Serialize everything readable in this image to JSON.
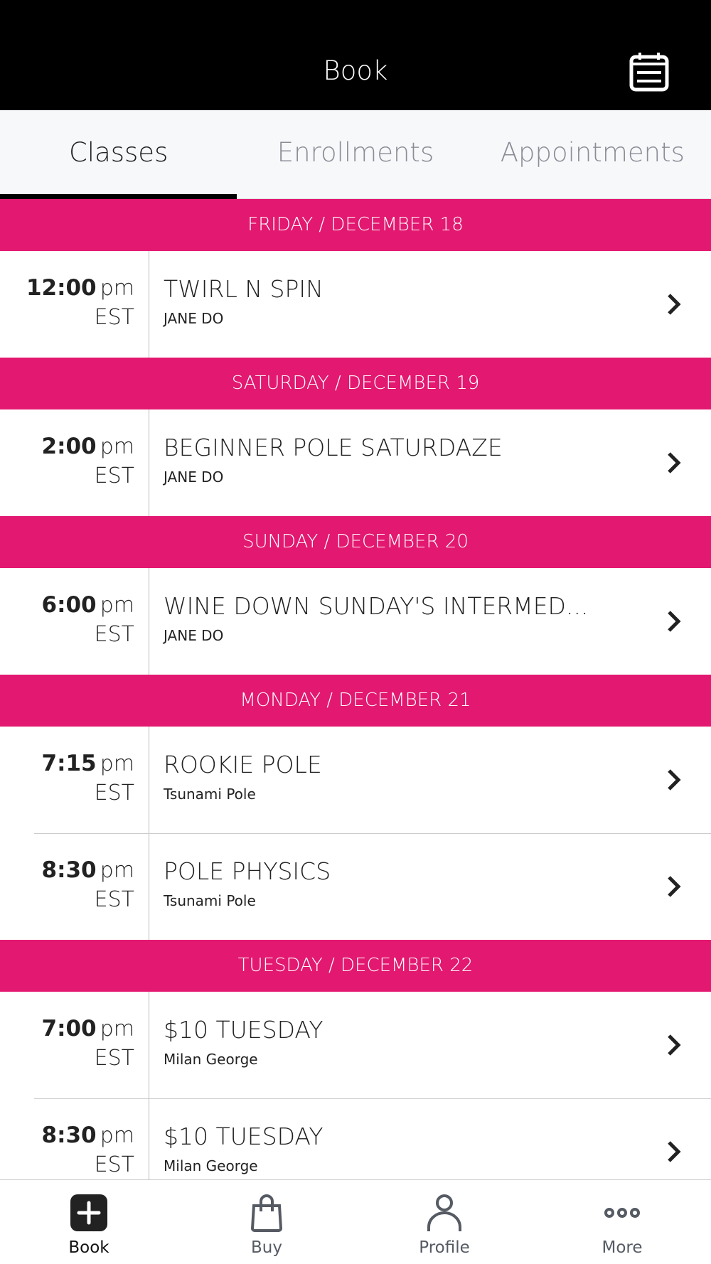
{
  "header": {
    "title": "Book",
    "calendar_icon": "calendar-list-icon"
  },
  "tabs": [
    {
      "label": "Classes",
      "active": true
    },
    {
      "label": "Enrollments"
    },
    {
      "label": "Appointments"
    }
  ],
  "colors": {
    "accent": "#e31870",
    "header_bg": "#000000"
  },
  "groups": [
    {
      "date": "FRIDAY / DECEMBER 18",
      "classes": [
        {
          "time": "12:00",
          "ampm": "pm",
          "tz": "EST",
          "name": "TWIRL N SPIN",
          "instructor": "JANE DO"
        }
      ]
    },
    {
      "date": "SATURDAY / DECEMBER 19",
      "classes": [
        {
          "time": "2:00",
          "ampm": "pm",
          "tz": "EST",
          "name": "BEGINNER POLE SATURDAZE",
          "instructor": "JANE DO"
        }
      ]
    },
    {
      "date": "SUNDAY / DECEMBER 20",
      "classes": [
        {
          "time": "6:00",
          "ampm": "pm",
          "tz": "EST",
          "name": "WINE DOWN SUNDAY'S INTERMED...",
          "instructor": "JANE DO"
        }
      ]
    },
    {
      "date": "MONDAY / DECEMBER 21",
      "classes": [
        {
          "time": "7:15",
          "ampm": "pm",
          "tz": "EST",
          "name": "ROOKIE POLE",
          "instructor": "Tsunami Pole"
        },
        {
          "time": "8:30",
          "ampm": "pm",
          "tz": "EST",
          "name": "POLE PHYSICS",
          "instructor": "Tsunami Pole"
        }
      ]
    },
    {
      "date": "TUESDAY / DECEMBER 22",
      "classes": [
        {
          "time": "7:00",
          "ampm": "pm",
          "tz": "EST",
          "name": "$10 TUESDAY",
          "instructor": "Milan George"
        },
        {
          "time": "8:30",
          "ampm": "pm",
          "tz": "EST",
          "name": "$10 TUESDAY",
          "instructor": "Milan George"
        }
      ]
    }
  ],
  "nav": [
    {
      "label": "Book",
      "icon": "plus-square-icon",
      "active": true
    },
    {
      "label": "Buy",
      "icon": "shopping-bag-icon"
    },
    {
      "label": "Profile",
      "icon": "person-icon"
    },
    {
      "label": "More",
      "icon": "more-dots-icon"
    }
  ]
}
